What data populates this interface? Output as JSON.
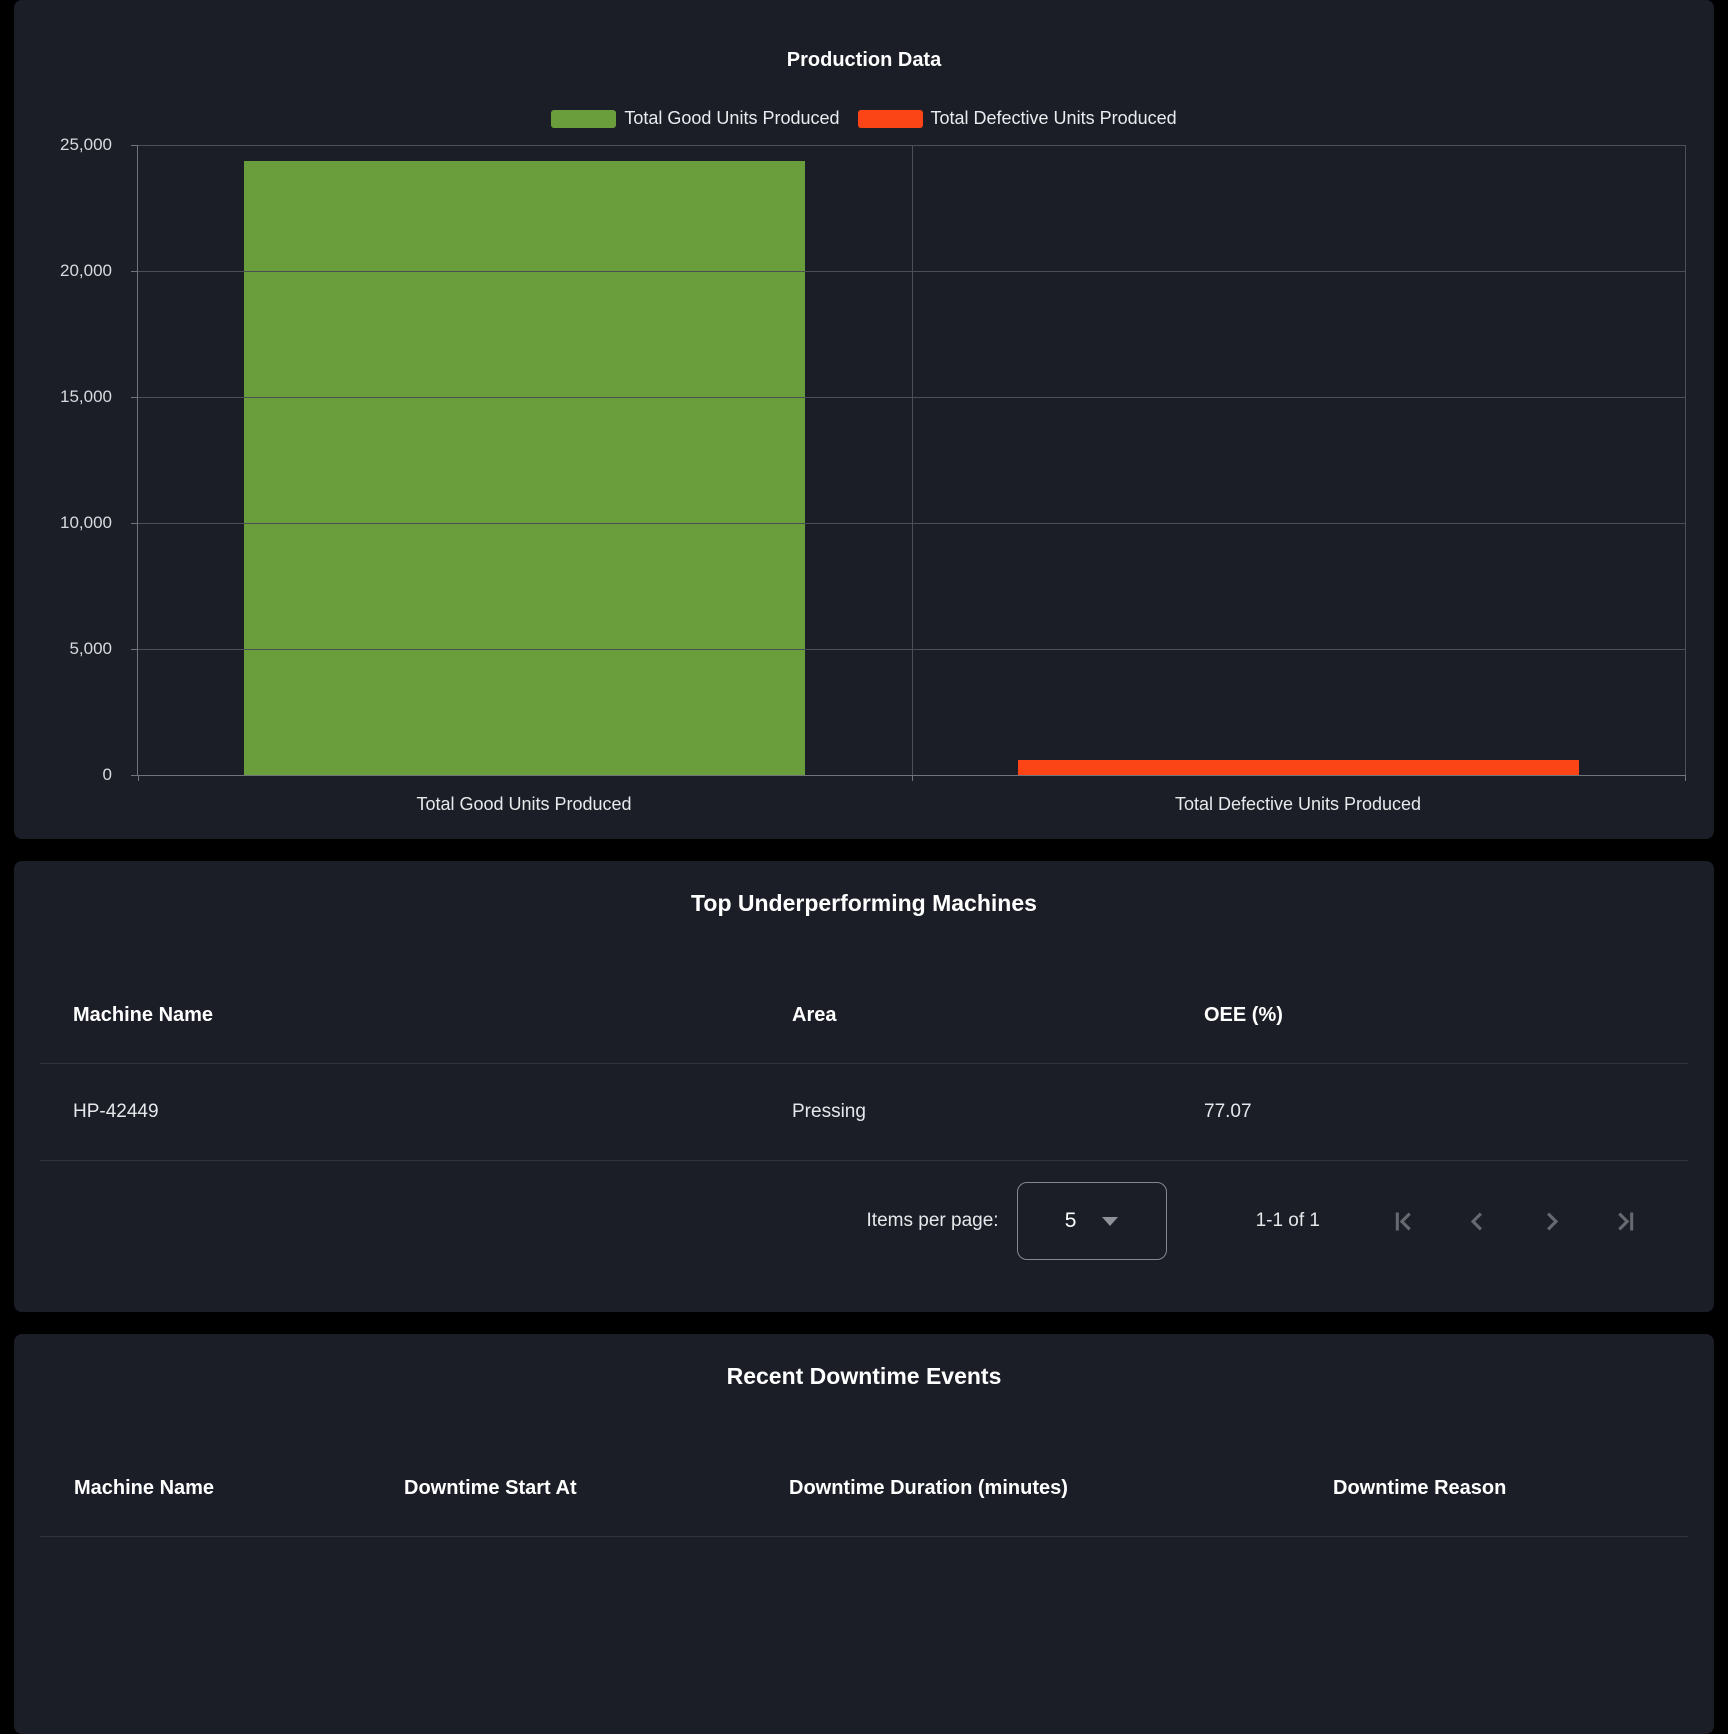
{
  "chart_data": {
    "type": "bar",
    "title": "Production Data",
    "categories": [
      "Total Good Units Produced",
      "Total Defective Units Produced"
    ],
    "values": [
      24340,
      595
    ],
    "colors": [
      "#6a9d3b",
      "#fb4516"
    ],
    "legend": [
      "Total Good Units Produced",
      "Total Defective Units Produced"
    ],
    "legend_position": "top",
    "xlabel": "",
    "ylabel": "",
    "ylim": [
      0,
      25000
    ],
    "yticks": [
      0,
      5000,
      10000,
      15000,
      20000,
      25000
    ],
    "ytick_labels": [
      "0",
      "5,000",
      "10,000",
      "15,000",
      "20,000",
      "25,000"
    ],
    "grid": true
  },
  "underperforming_table": {
    "title": "Top Underperforming Machines",
    "columns": [
      "Machine Name",
      "Area",
      "OEE (%)"
    ],
    "rows": [
      [
        "HP-42449",
        "Pressing",
        "77.07"
      ]
    ],
    "paginator": {
      "items_per_page_label": "Items per page:",
      "page_size": "5",
      "range_label": "1-1 of 1",
      "buttons": [
        "first-page",
        "previous-page",
        "next-page",
        "last-page"
      ]
    }
  },
  "downtime_table": {
    "title": "Recent Downtime Events",
    "columns": [
      "Machine Name",
      "Downtime Start At",
      "Downtime Duration (minutes)",
      "Downtime Reason"
    ],
    "rows": []
  },
  "colors": {
    "page_bg": "#000000",
    "card_bg": "#1b1e27",
    "grid_line": "#4c4f56",
    "axis_line": "#71747a",
    "good_units": "#6a9d3b",
    "defective_units": "#fb4516"
  }
}
